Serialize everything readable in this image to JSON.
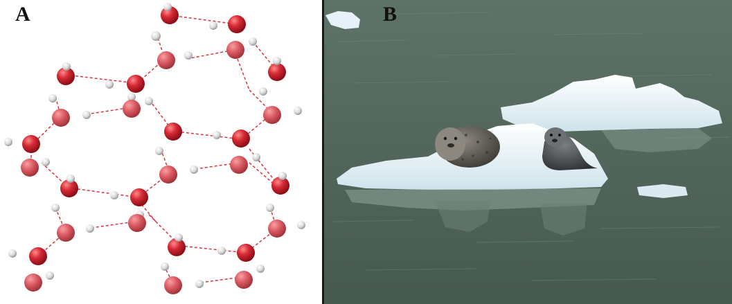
{
  "panels": {
    "a": {
      "label": "A"
    },
    "b": {
      "label": "B"
    }
  },
  "colors": {
    "oxygen": "#d0202c",
    "hydrogen": "#e8e8e8",
    "hydrogen_bond": "#d9333b",
    "water": "#51665b",
    "ice": "#e6f2f7"
  }
}
